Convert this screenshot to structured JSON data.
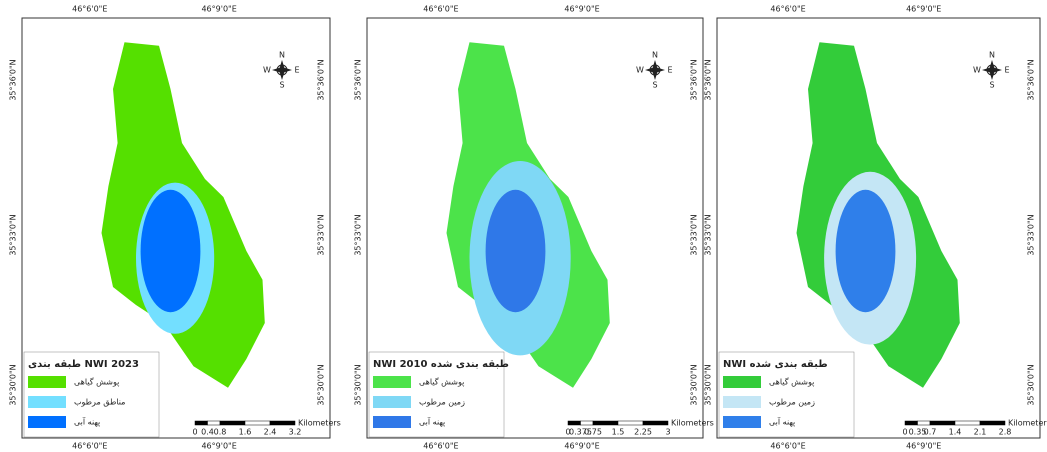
{
  "panels": [
    {
      "top_ticks": [
        "46°6'0\"E",
        "46°9'0\"E"
      ],
      "bottom_ticks": [
        "46°6'0\"E",
        "46°9'0\"E"
      ],
      "left_ticks": [
        "35°36'0\"N",
        "35°33'0\"N",
        "35°30'0\"N"
      ],
      "right_ticks": [
        "35°36'0\"N",
        "35°33'0\"N",
        "35°30'0\"N"
      ],
      "legend": {
        "title": "طبقه بندی NWI 2023",
        "items": [
          {
            "label": "پوشش گیاهی",
            "color": "#55e000"
          },
          {
            "label": "مناطق مرطوب",
            "color": "#73dfff"
          },
          {
            "label": "پهنه آبی",
            "color": "#0070ff"
          }
        ]
      },
      "scale": {
        "labels": [
          "0",
          "0.4",
          "0.8",
          "1.6",
          "2.4",
          "3.2"
        ],
        "unit": "Kilometers"
      },
      "compass": {
        "n": "N",
        "s": "S",
        "e": "E",
        "w": "W"
      }
    },
    {
      "top_ticks": [
        "46°6'0\"E",
        "46°9'0\"E"
      ],
      "bottom_ticks": [
        "46°6'0\"E",
        "46°9'0\"E"
      ],
      "left_ticks": [
        "35°36'0\"N",
        "35°33'0\"N",
        "35°30'0\"N"
      ],
      "right_ticks": [
        "35°36'0\"N",
        "35°33'0\"N",
        "35°30'0\"N"
      ],
      "legend": {
        "title": "NWI 2010 طبقه بندی شده",
        "items": [
          {
            "label": "پوشش گیاهی",
            "color": "#4ce34a"
          },
          {
            "label": "زمین مرطوب",
            "color": "#7fd8f5"
          },
          {
            "label": "پهنه آبی",
            "color": "#2f78e8"
          }
        ]
      },
      "scale": {
        "labels": [
          "0",
          "0.375",
          "0.75",
          "1.5",
          "2.25",
          "3"
        ],
        "unit": "Kilometers"
      },
      "compass": {
        "n": "N",
        "s": "S",
        "e": "E",
        "w": "W"
      }
    },
    {
      "top_ticks": [
        "46°6'0\"E",
        "46°9'0\"E"
      ],
      "bottom_ticks": [
        "46°6'0\"E",
        "46°9'0\"E"
      ],
      "left_ticks": [
        "35°36'0\"N",
        "35°33'0\"N",
        "35°30'0\"N"
      ],
      "right_ticks": [
        "35°36'0\"N",
        "35°33'0\"N",
        "35°30'0\"N"
      ],
      "legend": {
        "title": "NWI طبقه بندی شده",
        "items": [
          {
            "label": "پوشش گیاهی",
            "color": "#33cc3a"
          },
          {
            "label": "زمین مرطوب",
            "color": "#c4e6f5"
          },
          {
            "label": "پهنه آبی",
            "color": "#2f7fea"
          }
        ]
      },
      "scale": {
        "labels": [
          "0",
          "0.35",
          "0.7",
          "1.4",
          "2.1",
          "2.8"
        ],
        "unit": "Kilometers"
      },
      "compass": {
        "n": "N",
        "s": "S",
        "e": "E",
        "w": "W"
      }
    }
  ]
}
